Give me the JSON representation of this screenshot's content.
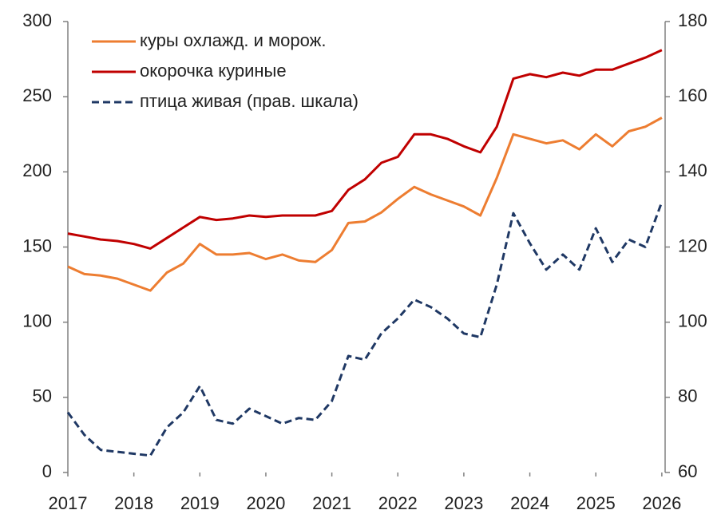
{
  "chart_data": {
    "type": "line",
    "x": [
      2017.0,
      2017.25,
      2017.5,
      2017.75,
      2018.0,
      2018.25,
      2018.5,
      2018.75,
      2019.0,
      2019.25,
      2019.5,
      2019.75,
      2020.0,
      2020.25,
      2020.5,
      2020.75,
      2021.0,
      2021.25,
      2021.5,
      2021.75,
      2022.0,
      2022.25,
      2022.5,
      2022.75,
      2023.0,
      2023.25,
      2023.5,
      2023.75,
      2024.0,
      2024.25,
      2024.5,
      2024.75,
      2025.0,
      2025.25,
      2025.5,
      2025.75,
      2026.0
    ],
    "series": [
      {
        "name": "куры охлажд. и морож.",
        "color": "#ed7d31",
        "values": [
          137,
          132,
          131,
          129,
          125,
          121,
          133,
          139,
          152,
          145,
          145,
          146,
          142,
          145,
          141,
          140,
          148,
          166,
          167,
          173,
          182,
          190,
          185,
          181,
          177,
          171,
          196,
          225,
          222,
          219,
          221,
          215,
          225,
          217,
          227,
          230,
          236
        ]
      },
      {
        "name": "окорочка куриные",
        "color": "#c00000",
        "values": [
          159,
          157,
          155,
          154,
          152,
          149,
          156,
          163,
          170,
          168,
          169,
          171,
          170,
          171,
          171,
          171,
          174,
          188,
          195,
          206,
          210,
          225,
          225,
          222,
          217,
          213,
          230,
          262,
          265,
          263,
          266,
          264,
          268,
          268,
          272,
          276,
          281
        ]
      },
      {
        "name": "птица живая (прав. шкала)",
        "color": "#1f3864",
        "dashed": true,
        "axis": "y2",
        "values": [
          76,
          70,
          66,
          65.5,
          65,
          64.5,
          72,
          76,
          83,
          74,
          73,
          77,
          75,
          73,
          74.5,
          74,
          79,
          91,
          90,
          97,
          101,
          106,
          104,
          101,
          97,
          96,
          110,
          129,
          121,
          114,
          118,
          114,
          125,
          116,
          122,
          120,
          132
        ]
      }
    ],
    "xlim": [
      2017,
      2026.05
    ],
    "xticks": [
      2017,
      2018,
      2019,
      2020,
      2021,
      2022,
      2023,
      2024,
      2025,
      2026
    ],
    "ylim": [
      0,
      300
    ],
    "yticks": [
      0,
      50,
      100,
      150,
      200,
      250,
      300
    ],
    "y2lim": [
      60,
      180
    ],
    "y2ticks": [
      60,
      80,
      100,
      120,
      140,
      160,
      180
    ],
    "grid": false,
    "legend": "upper left"
  }
}
